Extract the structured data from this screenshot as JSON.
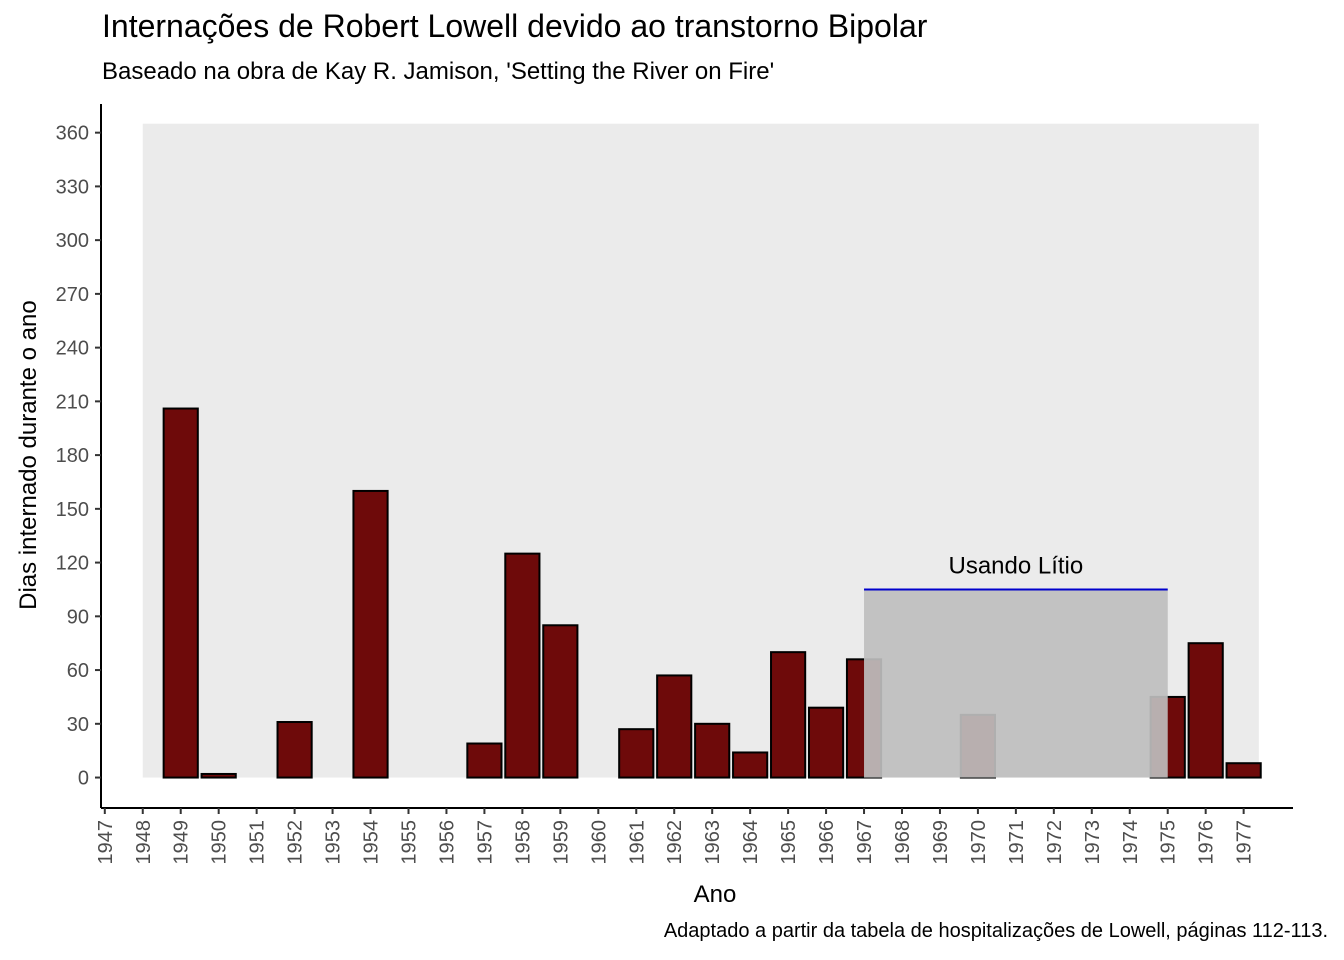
{
  "chart_data": {
    "type": "bar",
    "title": "Internações de Robert Lowell devido ao transtorno Bipolar",
    "subtitle": "Baseado na obra de Kay R. Jamison, 'Setting the River on Fire'",
    "caption": "Adaptado a partir da tabela de hospitalizações de Lowell, páginas 112-113.",
    "xlabel": "Ano",
    "ylabel": "Dias internado durante o ano",
    "x_ticks": [
      "1947",
      "1948",
      "1949",
      "1950",
      "1951",
      "1952",
      "1953",
      "1954",
      "1955",
      "1956",
      "1957",
      "1958",
      "1959",
      "1960",
      "1961",
      "1962",
      "1963",
      "1964",
      "1965",
      "1966",
      "1967",
      "1968",
      "1969",
      "1970",
      "1971",
      "1972",
      "1973",
      "1974",
      "1975",
      "1976",
      "1977"
    ],
    "y_ticks": [
      0,
      30,
      60,
      90,
      120,
      150,
      180,
      210,
      240,
      270,
      300,
      330,
      360
    ],
    "ylim": [
      -17,
      376
    ],
    "x_range": [
      1946.9,
      1978.3
    ],
    "categories": [
      "1949",
      "1950",
      "1952",
      "1954",
      "1957",
      "1958",
      "1959",
      "1961",
      "1962",
      "1963",
      "1964",
      "1965",
      "1966",
      "1967",
      "1970",
      "1975",
      "1976",
      "1977"
    ],
    "values": [
      206,
      2,
      31,
      160,
      19,
      125,
      85,
      27,
      57,
      30,
      14,
      70,
      39,
      66,
      35,
      45,
      75,
      8
    ],
    "background_band": {
      "x": [
        1948,
        1977.4
      ],
      "y": [
        0,
        365
      ]
    },
    "annotation": {
      "label": "Usando Lítio",
      "x": [
        1967,
        1975
      ],
      "y_top": 105,
      "line_color": "#0000cc",
      "fill_color": "#bebebe"
    },
    "bar_fill": "#6e0a0a",
    "bar_border": "#000000",
    "panel_color": "#ebebeb",
    "grid": false,
    "legend": "none"
  }
}
